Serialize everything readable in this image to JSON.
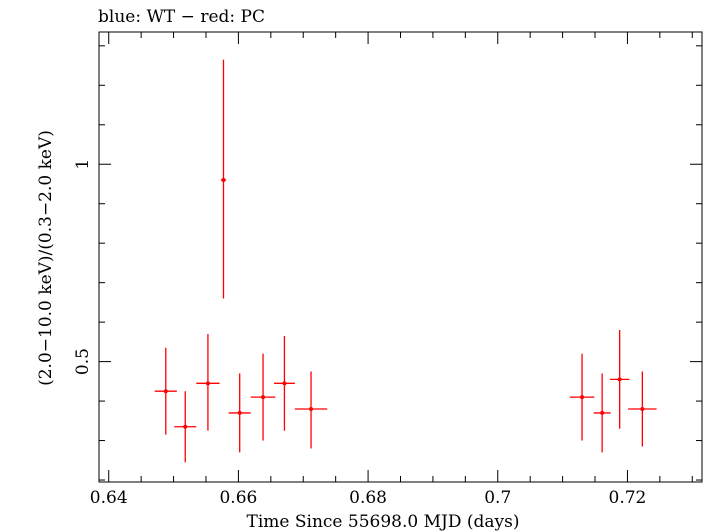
{
  "chart_data": {
    "type": "scatter",
    "title": "blue: WT − red: PC",
    "xlabel": "Time Since 55698.0 MJD (days)",
    "ylabel": "(2.0−10.0 keV)/(0.3−2.0 keV)",
    "xlim": [
      0.6385,
      0.7315
    ],
    "ylim": [
      0.195,
      1.335
    ],
    "x_ticks": [
      {
        "value": 0.64,
        "label": "0.64"
      },
      {
        "value": 0.66,
        "label": "0.66"
      },
      {
        "value": 0.68,
        "label": "0.68"
      },
      {
        "value": 0.7,
        "label": "0.7"
      },
      {
        "value": 0.72,
        "label": "0.72"
      }
    ],
    "y_ticks": [
      {
        "value": 0.5,
        "label": "0.5"
      },
      {
        "value": 1,
        "label": "1"
      }
    ],
    "grid": false,
    "series": [
      {
        "color": "#ff0000",
        "points": [
          {
            "x": 0.6488,
            "xerr": 0.0017,
            "y": 0.425,
            "ylo": 0.315,
            "yhi": 0.535
          },
          {
            "x": 0.6518,
            "xerr": 0.0017,
            "y": 0.335,
            "ylo": 0.245,
            "yhi": 0.425
          },
          {
            "x": 0.6553,
            "xerr": 0.0018,
            "y": 0.445,
            "ylo": 0.325,
            "yhi": 0.57
          },
          {
            "x": 0.6577,
            "xerr": 0.0004,
            "y": 0.96,
            "ylo": 0.66,
            "yhi": 1.265
          },
          {
            "x": 0.6602,
            "xerr": 0.0017,
            "y": 0.37,
            "ylo": 0.27,
            "yhi": 0.47
          },
          {
            "x": 0.6638,
            "xerr": 0.0019,
            "y": 0.41,
            "ylo": 0.3,
            "yhi": 0.52
          },
          {
            "x": 0.6671,
            "xerr": 0.0016,
            "y": 0.445,
            "ylo": 0.325,
            "yhi": 0.565
          },
          {
            "x": 0.6712,
            "xerr": 0.0025,
            "y": 0.38,
            "ylo": 0.28,
            "yhi": 0.475
          },
          {
            "x": 0.713,
            "xerr": 0.0019,
            "y": 0.41,
            "ylo": 0.3,
            "yhi": 0.52
          },
          {
            "x": 0.7161,
            "xerr": 0.0013,
            "y": 0.37,
            "ylo": 0.27,
            "yhi": 0.47
          },
          {
            "x": 0.7188,
            "xerr": 0.0015,
            "y": 0.455,
            "ylo": 0.33,
            "yhi": 0.58
          },
          {
            "x": 0.7223,
            "xerr": 0.0022,
            "y": 0.38,
            "ylo": 0.285,
            "yhi": 0.475
          }
        ]
      }
    ]
  }
}
